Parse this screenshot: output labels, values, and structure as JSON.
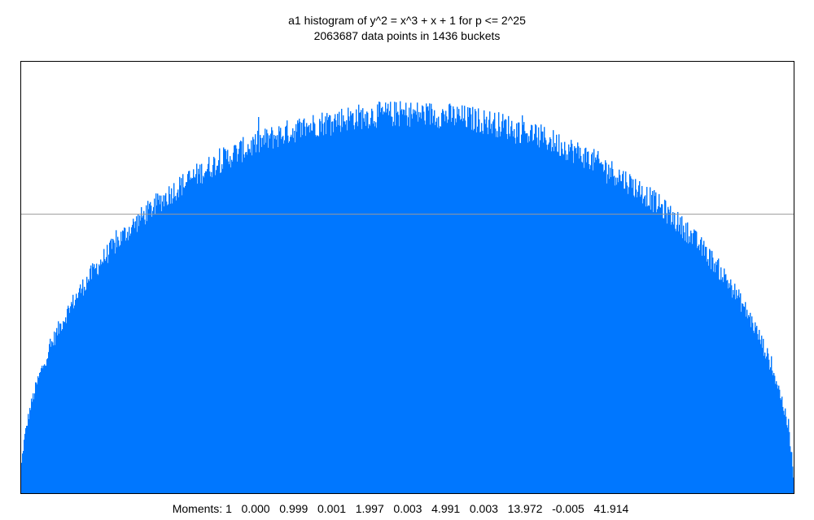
{
  "chart_data": {
    "type": "bar",
    "title": "a1 histogram of y^2 = x^3 + x + 1 for p <= 2^25",
    "subtitle": "2063687 data points in 1436 buckets",
    "n_points": 2063687,
    "n_buckets": 1436,
    "x_domain": [
      -2,
      2
    ],
    "distribution_shape": "semicircle (Sato-Tate)",
    "reference_line_fraction_of_peak": 0.736,
    "moments_label": "Moments:",
    "moments": [
      "1",
      "0.000",
      "0.999",
      "0.001",
      "1.997",
      "0.003",
      "4.991",
      "0.003",
      "13.972",
      "-0.005",
      "41.914"
    ],
    "grid": false,
    "legend": "none",
    "bar_color": "#0077FF",
    "frame_color": "#000000",
    "reference_line_color": "#999999"
  }
}
